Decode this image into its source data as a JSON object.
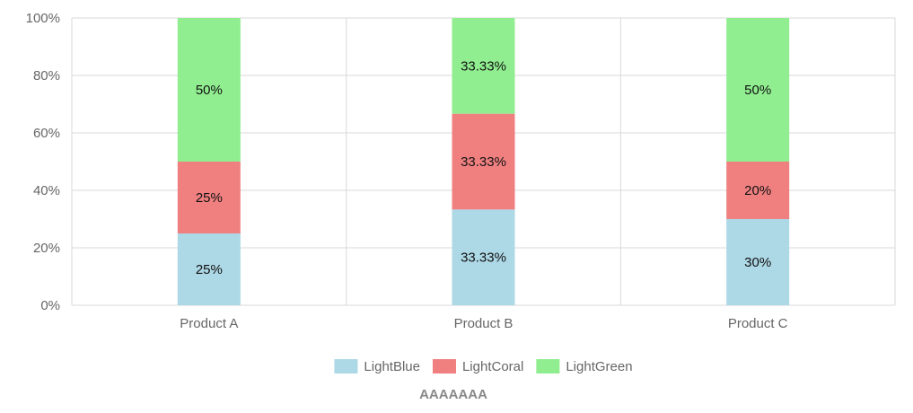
{
  "chart_data": {
    "type": "bar",
    "stacked": true,
    "percent": true,
    "categories": [
      "Product A",
      "Product B",
      "Product C"
    ],
    "series": [
      {
        "name": "LightBlue",
        "color": "#add8e6",
        "values": [
          25,
          33.33,
          30
        ],
        "labels": [
          "25%",
          "33.33%",
          "30%"
        ]
      },
      {
        "name": "LightCoral",
        "color": "#f08080",
        "values": [
          25,
          33.33,
          20
        ],
        "labels": [
          "25%",
          "33.33%",
          "20%"
        ]
      },
      {
        "name": "LightGreen",
        "color": "#90ee90",
        "values": [
          50,
          33.33,
          50
        ],
        "labels": [
          "50%",
          "33.33%",
          "50%"
        ]
      }
    ],
    "ylim": [
      0,
      100
    ],
    "y_ticks": [
      "0%",
      "20%",
      "40%",
      "60%",
      "80%",
      "100%"
    ],
    "y_tick_values": [
      0,
      20,
      40,
      60,
      80,
      100
    ],
    "grid": true,
    "legend_position": "bottom-center",
    "footer_label": "AAAAAAA"
  }
}
